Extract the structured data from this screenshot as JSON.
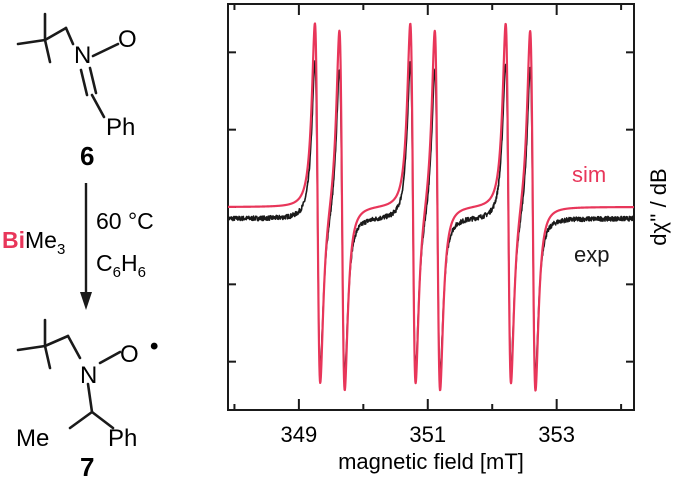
{
  "scheme": {
    "compound_top": {
      "label": "6",
      "atoms": [
        "N",
        "O",
        "Ph"
      ]
    },
    "reaction": {
      "reagent_highlight": "Bi",
      "reagent_rest": "Me",
      "reagent_sub": "3",
      "temperature": "60 °C",
      "solvent_C": "C",
      "solvent_sub1": "6",
      "solvent_H": "H",
      "solvent_sub2": "6"
    },
    "compound_bottom": {
      "label": "7",
      "atoms": [
        "N",
        "O",
        "Me",
        "Ph"
      ],
      "radical_dot": "•"
    }
  },
  "chart_data": {
    "type": "line",
    "xlabel": "magnetic field [mT]",
    "ylabel": "dχ'' / dB",
    "xlim": [
      347.9,
      354.2
    ],
    "ylim": [
      -1.05,
      1.05
    ],
    "xticks": [
      349,
      351,
      353
    ],
    "xtick_labels": [
      "349",
      "351",
      "353"
    ],
    "minor_xticks": [
      348,
      350,
      352,
      354
    ],
    "grid": false,
    "legend": "inline-right",
    "series": [
      {
        "name": "sim",
        "color": "#e8365a",
        "offset": 0.0,
        "amplitude": 1.0,
        "noise": 0.0
      },
      {
        "name": "exp",
        "color": "#1a1a1a",
        "offset": -0.06,
        "amplitude": 0.85,
        "noise": 0.012
      }
    ],
    "lines": [
      {
        "center": 349.48,
        "ranks": [
          0.92,
          0.92
        ]
      },
      {
        "center": 350.96,
        "ranks": [
          0.92,
          0.92
        ]
      },
      {
        "center": 352.44,
        "ranks": [
          0.92,
          0.92
        ]
      }
    ],
    "doublet_splitting_mT": 0.38,
    "linewidth_mT": 0.072
  },
  "colors": {
    "accent": "#e8365a",
    "ink": "#1a1a1a"
  }
}
